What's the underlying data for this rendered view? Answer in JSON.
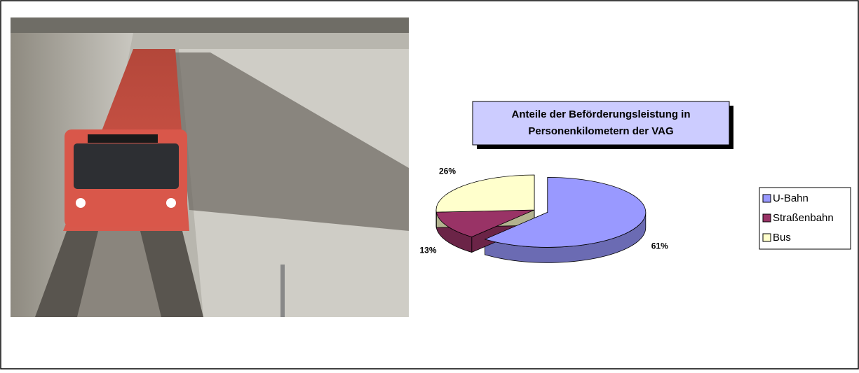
{
  "chart_data": {
    "type": "pie",
    "title": [
      "Anteile der Beförderungsleistung in",
      "Personenkilometern der VAG"
    ],
    "categories": [
      "U-Bahn",
      "Straßenbahn",
      "Bus"
    ],
    "values": [
      61,
      13,
      26
    ],
    "value_labels": [
      "61%",
      "13%",
      "26%"
    ],
    "colors": [
      "#9999ff",
      "#993366",
      "#ffffcc"
    ],
    "legend": "right"
  }
}
